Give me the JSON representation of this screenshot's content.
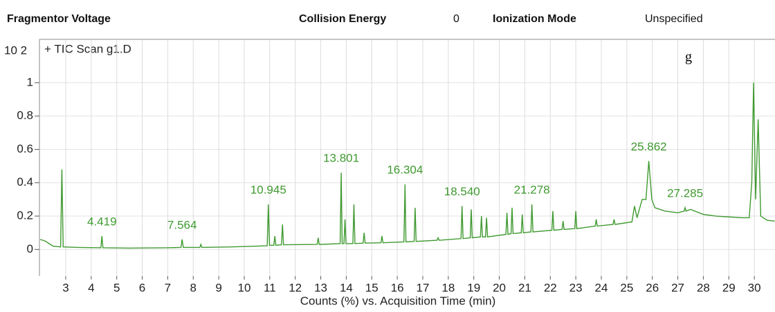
{
  "header": {
    "fragmentor_label": "Fragmentor Voltage",
    "collision_label": "Collision Energy",
    "collision_value": "0",
    "ionization_label": "Ionization Mode",
    "ionization_value": "Unspecified"
  },
  "chart_data": {
    "type": "line",
    "title": "+ TIC Scan g1.D",
    "panel_label": "g",
    "y_multiplier": "10 2",
    "x_label": "Counts (%) vs. Acquisition Time (min)",
    "xlim": [
      1.97,
      30.81
    ],
    "ylim": [
      -0.16,
      1.26
    ],
    "xticks": [
      3,
      4,
      5,
      6,
      7,
      8,
      9,
      10,
      11,
      12,
      13,
      14,
      15,
      16,
      17,
      18,
      19,
      20,
      21,
      22,
      23,
      24,
      25,
      26,
      27,
      28,
      29,
      30
    ],
    "yticks": [
      0,
      0.2,
      0.4,
      0.6,
      0.8,
      1
    ],
    "grid": true,
    "x": [
      2.0,
      2.2,
      2.5,
      2.8,
      2.85,
      2.9,
      3.5,
      4.38,
      4.419,
      4.46,
      5.5,
      7.0,
      7.52,
      7.564,
      7.61,
      8.26,
      8.3,
      8.34,
      9.5,
      10.5,
      10.9,
      10.945,
      10.99,
      11.16,
      11.2,
      11.24,
      11.46,
      11.5,
      11.54,
      12.86,
      12.9,
      12.94,
      13.76,
      13.801,
      13.84,
      13.91,
      13.95,
      13.99,
      14.26,
      14.3,
      14.34,
      14.66,
      14.7,
      14.74,
      15.36,
      15.4,
      15.44,
      16.26,
      16.304,
      16.34,
      16.66,
      16.7,
      16.74,
      17.56,
      17.6,
      17.64,
      18.5,
      18.54,
      18.58,
      18.86,
      18.9,
      18.94,
      19.26,
      19.3,
      19.34,
      19.46,
      19.5,
      19.54,
      20.26,
      20.3,
      20.34,
      20.46,
      20.5,
      20.54,
      20.86,
      20.9,
      20.94,
      21.24,
      21.278,
      21.32,
      22.06,
      22.1,
      22.14,
      22.46,
      22.5,
      22.54,
      22.96,
      23.0,
      23.04,
      23.76,
      23.8,
      23.84,
      24.46,
      24.5,
      24.54,
      25.2,
      25.3,
      25.4,
      25.6,
      25.75,
      25.862,
      25.98,
      26.1,
      26.5,
      27.0,
      27.25,
      27.285,
      27.32,
      27.5,
      28.0,
      28.5,
      29.0,
      29.5,
      29.8,
      29.9,
      29.97,
      30.05,
      30.15,
      30.25,
      30.5,
      30.8
    ],
    "series": [
      {
        "name": "TIC",
        "color": "#3f9a30",
        "values": [
          0.06,
          0.05,
          0.02,
          0.015,
          0.48,
          0.015,
          0.012,
          0.01,
          0.08,
          0.01,
          0.008,
          0.01,
          0.012,
          0.06,
          0.012,
          0.012,
          0.03,
          0.012,
          0.015,
          0.02,
          0.022,
          0.27,
          0.025,
          0.025,
          0.08,
          0.025,
          0.028,
          0.15,
          0.028,
          0.03,
          0.07,
          0.03,
          0.035,
          0.46,
          0.035,
          0.035,
          0.18,
          0.035,
          0.035,
          0.27,
          0.035,
          0.038,
          0.1,
          0.038,
          0.04,
          0.08,
          0.04,
          0.045,
          0.39,
          0.045,
          0.048,
          0.25,
          0.048,
          0.055,
          0.07,
          0.055,
          0.065,
          0.26,
          0.065,
          0.07,
          0.24,
          0.07,
          0.075,
          0.2,
          0.075,
          0.075,
          0.19,
          0.075,
          0.09,
          0.22,
          0.09,
          0.095,
          0.25,
          0.095,
          0.1,
          0.21,
          0.1,
          0.105,
          0.27,
          0.105,
          0.115,
          0.23,
          0.115,
          0.12,
          0.17,
          0.12,
          0.125,
          0.23,
          0.125,
          0.14,
          0.18,
          0.14,
          0.15,
          0.18,
          0.15,
          0.165,
          0.26,
          0.19,
          0.3,
          0.3,
          0.53,
          0.3,
          0.25,
          0.23,
          0.22,
          0.23,
          0.25,
          0.23,
          0.24,
          0.21,
          0.2,
          0.195,
          0.19,
          0.19,
          0.4,
          1.0,
          0.3,
          0.78,
          0.2,
          0.175,
          0.17
        ]
      }
    ],
    "annotations": [
      "4.419",
      "7.564",
      "10.945",
      "13.801",
      "16.304",
      "18.540",
      "21.278",
      "25.862",
      "27.285"
    ]
  }
}
